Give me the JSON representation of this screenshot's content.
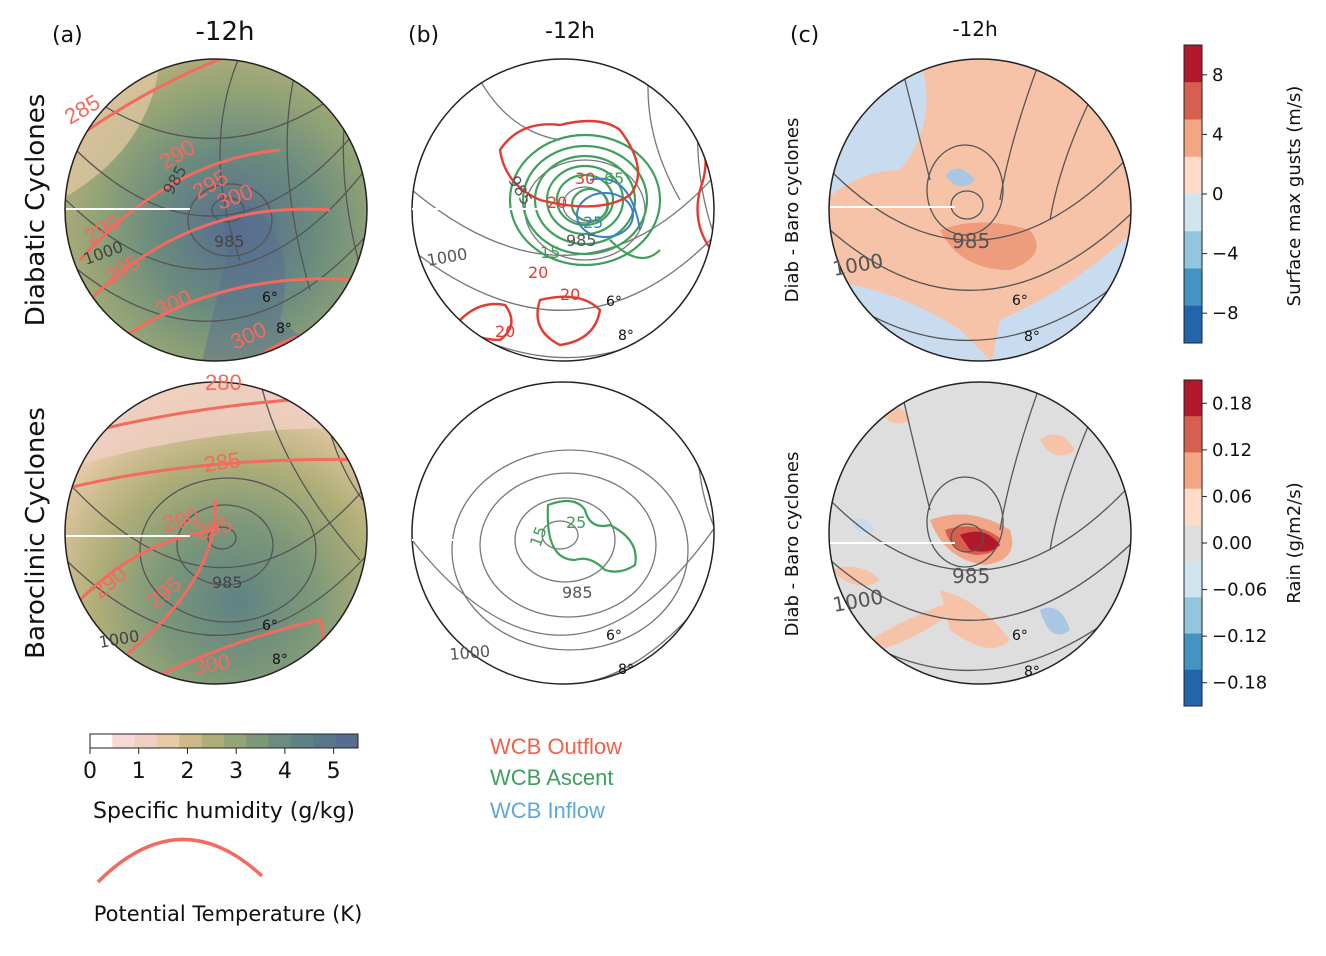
{
  "panel_a": {
    "letter": "(a)",
    "time": "-12h",
    "row_top": "Diabatic Cyclones",
    "row_bottom": "Baroclinic Cyclones",
    "colorbar": {
      "label": "Specific humidity (g/kg)",
      "ticks": [
        "0",
        "1",
        "2",
        "3",
        "4",
        "5"
      ],
      "colors": [
        "#ffffff",
        "#f6d8d4",
        "#f0cfc4",
        "#e6c9a6",
        "#cdb986",
        "#b0ae78",
        "#94a476",
        "#7c9879",
        "#6b8c7e",
        "#5f8283",
        "#5a778a",
        "#566c90"
      ]
    },
    "theta_legend": "Potential Temperature (K)",
    "top_labels": {
      "theta": [
        "285",
        "290",
        "295",
        "300",
        "290",
        "295",
        "300",
        "300"
      ],
      "pressure": [
        "985",
        "985",
        "1000"
      ],
      "degrees": [
        "6°",
        "8°"
      ]
    },
    "bottom_labels": {
      "theta": [
        "280",
        "285",
        "290",
        "295",
        "290",
        "295",
        "300"
      ],
      "pressure": [
        "985",
        "1000"
      ],
      "degrees": [
        "6°",
        "8°"
      ]
    }
  },
  "panel_b": {
    "letter": "(b)",
    "time": "-12h",
    "legend": [
      {
        "label": "WCB Outflow",
        "color": "#f0624a"
      },
      {
        "label": "WCB Ascent",
        "color": "#3fa05c"
      },
      {
        "label": "WCB Inflow",
        "color": "#5ea8dc"
      }
    ],
    "top_labels": {
      "wcb": [
        "30",
        "65",
        "20",
        "25",
        "15",
        "20",
        "20",
        "20"
      ],
      "pressure": [
        "985",
        "985",
        "1000"
      ],
      "degrees": [
        "6°",
        "8°"
      ]
    },
    "bottom_labels": {
      "wcb": [
        "25",
        "15"
      ],
      "pressure": [
        "985",
        "1000"
      ],
      "degrees": [
        "6°",
        "8°"
      ]
    }
  },
  "panel_c": {
    "letter": "(c)",
    "time": "-12h",
    "row_label": "Diab - Baro cyclones",
    "colorbar_gusts": {
      "label": "Surface max gusts (m/s)",
      "ticks": [
        "8",
        "4",
        "0",
        "−4",
        "−8"
      ],
      "colors": [
        "#b2182b",
        "#d6604d",
        "#f4a582",
        "#fddbc7",
        "#d1e5f0",
        "#92c5de",
        "#4393c3",
        "#2166ac"
      ]
    },
    "colorbar_rain": {
      "label": "Rain (g/m2/s)",
      "ticks": [
        "0.18",
        "0.12",
        "0.06",
        "0.00",
        "−0.06",
        "−0.12",
        "−0.18"
      ],
      "colors": [
        "#b2182b",
        "#d6604d",
        "#f4a582",
        "#fddbc7",
        "#dedede",
        "#d1e5f0",
        "#92c5de",
        "#4393c3",
        "#2166ac"
      ]
    },
    "top_labels": {
      "pressure": [
        "985",
        "1000"
      ],
      "degrees": [
        "6°",
        "8°"
      ]
    },
    "bottom_labels": {
      "pressure": [
        "985",
        "1000"
      ],
      "degrees": [
        "6°",
        "8°"
      ]
    }
  }
}
